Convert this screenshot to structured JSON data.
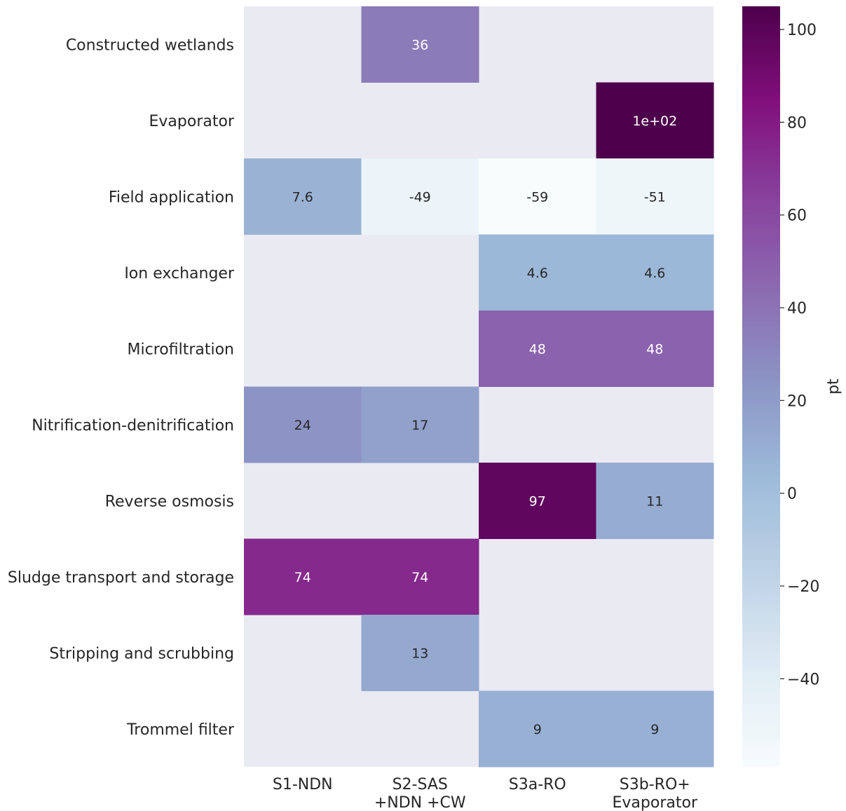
{
  "chart_data": {
    "type": "heatmap",
    "title": "",
    "xlabel": "",
    "ylabel": "",
    "rows": [
      "Constructed wetlands",
      "Evaporator",
      "Field application",
      "Ion exchanger",
      "Microfiltration",
      "Nitrification-denitrification",
      "Reverse osmosis",
      "Sludge transport and storage",
      "Stripping and scrubbing",
      "Trommel filter"
    ],
    "columns": [
      [
        "S1-NDN"
      ],
      [
        "S2-SAS",
        "+NDN +CW"
      ],
      [
        "S3a-RO"
      ],
      [
        "S3b-RO+",
        "Evaporator"
      ]
    ],
    "values": [
      [
        null,
        36,
        null,
        null
      ],
      [
        null,
        null,
        null,
        105
      ],
      [
        7.6,
        -49,
        -59,
        -51
      ],
      [
        null,
        null,
        4.6,
        4.6
      ],
      [
        null,
        null,
        48,
        48
      ],
      [
        24,
        17,
        null,
        null
      ],
      [
        null,
        null,
        97,
        11
      ],
      [
        74,
        74,
        null,
        null
      ],
      [
        null,
        13,
        null,
        null
      ],
      [
        null,
        null,
        9,
        9
      ]
    ],
    "annotations": [
      [
        "",
        "36",
        "",
        ""
      ],
      [
        "",
        "",
        "",
        "1e+02"
      ],
      [
        "7.6",
        "-49",
        "-59",
        "-51"
      ],
      [
        "",
        "",
        "4.6",
        "4.6"
      ],
      [
        "",
        "",
        "48",
        "48"
      ],
      [
        "24",
        "17",
        "",
        ""
      ],
      [
        "",
        "",
        "97",
        "11"
      ],
      [
        "74",
        "74",
        "",
        ""
      ],
      [
        "",
        "13",
        "",
        ""
      ],
      [
        "",
        "",
        "9",
        "9"
      ]
    ],
    "colorbar": {
      "label": "pt",
      "min": -59,
      "max": 105,
      "ticks": [
        100,
        80,
        60,
        40,
        20,
        0,
        -20,
        -40
      ],
      "tick_labels": [
        "100",
        "80",
        "60",
        "40",
        "20",
        "0",
        "−20",
        "−40"
      ],
      "colormap": "BuPu",
      "color_stops": [
        "#f7fcfd",
        "#e0ecf4",
        "#bfd3e6",
        "#9ebcda",
        "#8c96c6",
        "#8c6bb1",
        "#88419d",
        "#810f7c",
        "#4d004b"
      ]
    },
    "missing_color": "#eaeaf2",
    "annotation_colors": {
      "dark": "#262626",
      "light": "#ffffff"
    },
    "grid": false
  }
}
